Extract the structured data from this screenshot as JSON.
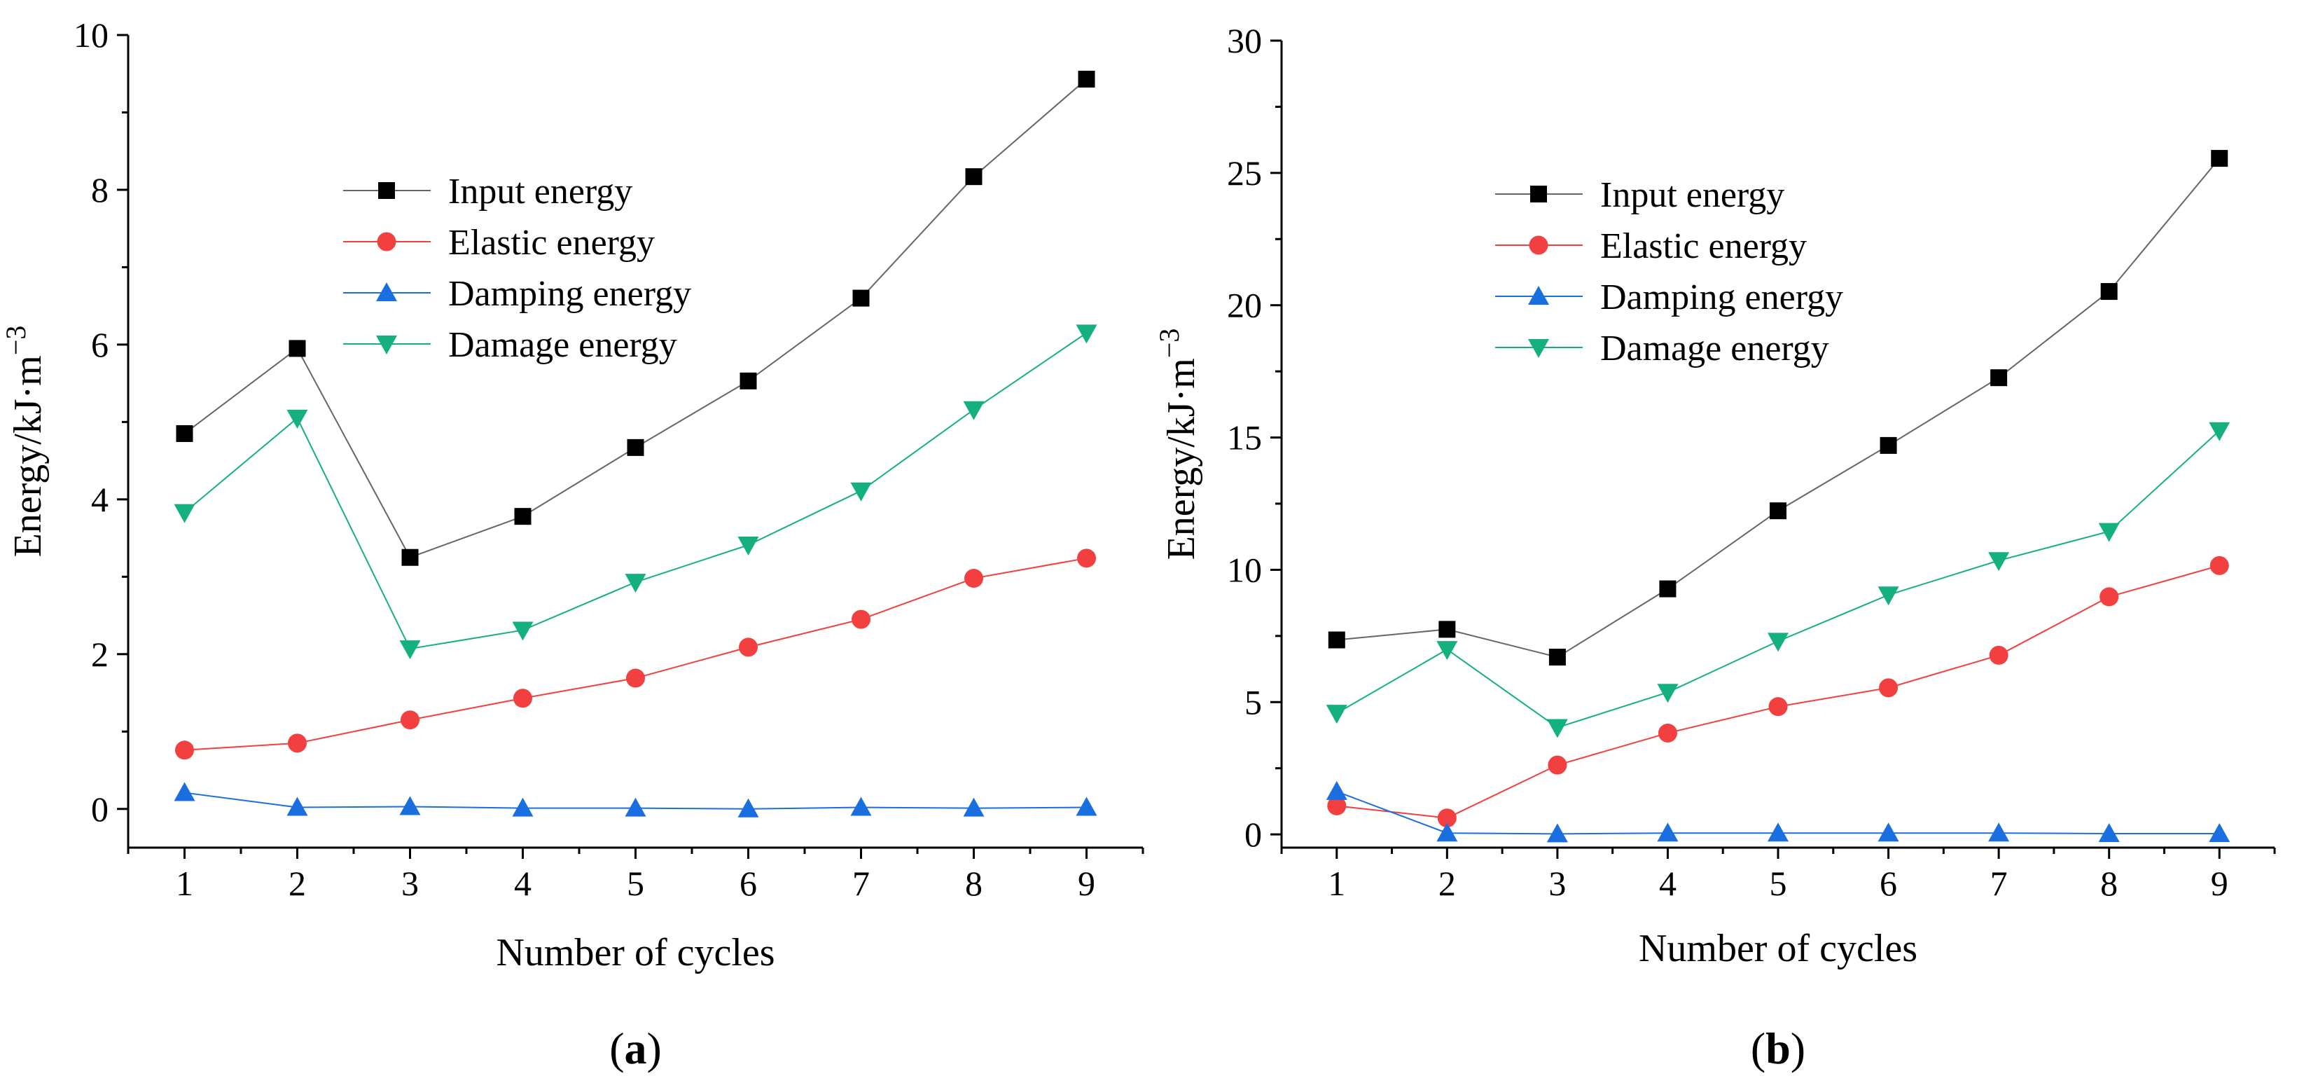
{
  "figure": {
    "colors": {
      "input": "#000000",
      "elastic": "#f24040",
      "damping": "#1a6fe0",
      "damage": "#15b080",
      "input_line": "#666666"
    }
  },
  "chart_data": [
    {
      "type": "line",
      "panel_label": "a",
      "xlabel": "Number of cycles",
      "ylabel_main": "Energy/kJ·m",
      "ylabel_sup": "−3",
      "x": [
        1,
        2,
        3,
        4,
        5,
        6,
        7,
        8,
        9
      ],
      "xlim": [
        0.5,
        9.5
      ],
      "ylim": [
        -0.5,
        10
      ],
      "xticks": [
        1,
        2,
        3,
        4,
        5,
        6,
        7,
        8,
        9
      ],
      "yticks": [
        0,
        2,
        4,
        6,
        8,
        10
      ],
      "legend_position": "upper-middle",
      "series": [
        {
          "key": "input",
          "name": "Input energy",
          "marker": "square",
          "values": [
            4.85,
            5.95,
            3.25,
            3.78,
            4.67,
            5.53,
            6.6,
            8.17,
            9.43
          ]
        },
        {
          "key": "elastic",
          "name": "Elastic energy",
          "marker": "circle",
          "values": [
            0.76,
            0.85,
            1.15,
            1.43,
            1.69,
            2.09,
            2.45,
            2.98,
            3.24
          ]
        },
        {
          "key": "damping",
          "name": "Damping energy",
          "marker": "triangle-up",
          "values": [
            0.21,
            0.02,
            0.03,
            0.01,
            0.01,
            0.0,
            0.02,
            0.01,
            0.02
          ]
        },
        {
          "key": "damage",
          "name": "Damage energy",
          "marker": "triangle-down",
          "values": [
            3.83,
            5.05,
            2.07,
            2.31,
            2.93,
            3.41,
            4.11,
            5.16,
            6.15
          ]
        }
      ]
    },
    {
      "type": "line",
      "panel_label": "b",
      "xlabel": "Number of cycles",
      "ylabel_main": "Energy/kJ·m",
      "ylabel_sup": "−3",
      "x": [
        1,
        2,
        3,
        4,
        5,
        6,
        7,
        8,
        9
      ],
      "xlim": [
        0.5,
        9.5
      ],
      "ylim": [
        -0.5,
        30
      ],
      "xticks": [
        1,
        2,
        3,
        4,
        5,
        6,
        7,
        8,
        9
      ],
      "yticks": [
        0,
        5,
        10,
        15,
        20,
        25,
        30
      ],
      "legend_position": "upper-middle",
      "series": [
        {
          "key": "input",
          "name": "Input energy",
          "marker": "square",
          "values": [
            7.35,
            7.75,
            6.7,
            9.28,
            12.23,
            14.7,
            17.26,
            20.52,
            25.55
          ]
        },
        {
          "key": "elastic",
          "name": "Elastic energy",
          "marker": "circle",
          "values": [
            1.08,
            0.62,
            2.62,
            3.83,
            4.83,
            5.54,
            6.77,
            8.98,
            10.16
          ]
        },
        {
          "key": "damping",
          "name": "Damping energy",
          "marker": "triangle-up",
          "values": [
            1.62,
            0.05,
            0.02,
            0.05,
            0.05,
            0.05,
            0.05,
            0.03,
            0.03
          ]
        },
        {
          "key": "damage",
          "name": "Damage energy",
          "marker": "triangle-down",
          "values": [
            4.58,
            6.99,
            4.04,
            5.37,
            7.3,
            9.05,
            10.35,
            11.45,
            15.26
          ]
        }
      ]
    }
  ]
}
